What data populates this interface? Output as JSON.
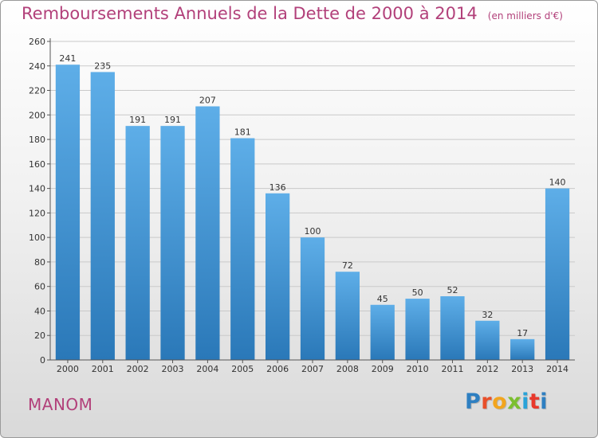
{
  "chart_data": {
    "type": "bar",
    "title": "Remboursements Annuels de la Dette de 2000 à 2014",
    "subtitle": "(en milliers d'€)",
    "categories": [
      "2000",
      "2001",
      "2002",
      "2003",
      "2004",
      "2005",
      "2006",
      "2007",
      "2008",
      "2009",
      "2010",
      "2011",
      "2012",
      "2013",
      "2014"
    ],
    "values": [
      241,
      235,
      191,
      191,
      207,
      181,
      136,
      100,
      72,
      45,
      50,
      52,
      32,
      17,
      140
    ],
    "yticks": [
      0,
      20,
      40,
      60,
      80,
      100,
      120,
      140,
      160,
      180,
      200,
      220,
      240,
      260
    ],
    "ylim": [
      0,
      260
    ],
    "xlabel": "",
    "ylabel": "",
    "grid": true,
    "bar_color": "#3d95d8"
  },
  "footer": {
    "city": "MANOM",
    "brand": "Proxiti"
  }
}
